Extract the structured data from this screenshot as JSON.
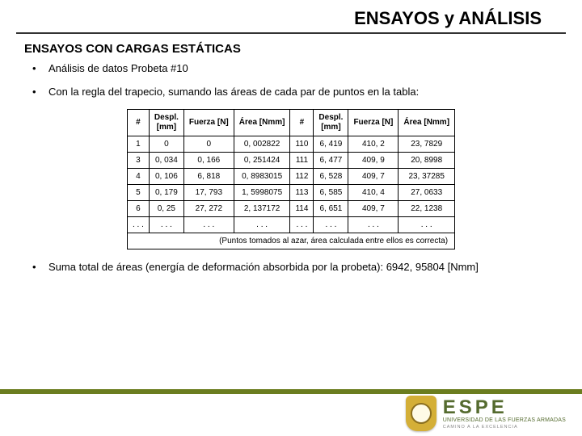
{
  "title": "ENSAYOS y ANÁLISIS",
  "section": "ENSAYOS CON CARGAS ESTÁTICAS",
  "bullets": {
    "b1": "Análisis de datos Probeta #10",
    "b2": "Con la regla del trapecio, sumando las áreas de cada par de puntos en la tabla:",
    "b3": "Suma total de áreas (energía de deformación absorbida por la probeta): 6942, 95804 [Nmm]"
  },
  "table": {
    "headers": {
      "h1": "#",
      "h2": "Despl.\n[mm]",
      "h3": "Fuerza [N]",
      "h4": "Área [Nmm]",
      "h5": "#",
      "h6": "Despl.\n[mm]",
      "h7": "Fuerza [N]",
      "h8": "Área [Nmm]"
    },
    "rows": [
      {
        "c1": "1",
        "c2": "0",
        "c3": "0",
        "c4": "0, 002822",
        "c5": "110",
        "c6": "6, 419",
        "c7": "410, 2",
        "c8": "23, 7829"
      },
      {
        "c1": "3",
        "c2": "0, 034",
        "c3": "0, 166",
        "c4": "0, 251424",
        "c5": "111",
        "c6": "6, 477",
        "c7": "409, 9",
        "c8": "20, 8998"
      },
      {
        "c1": "4",
        "c2": "0, 106",
        "c3": "6, 818",
        "c4": "0, 8983015",
        "c5": "112",
        "c6": "6, 528",
        "c7": "409, 7",
        "c8": "23, 37285"
      },
      {
        "c1": "5",
        "c2": "0, 179",
        "c3": "17, 793",
        "c4": "1, 5998075",
        "c5": "113",
        "c6": "6, 585",
        "c7": "410, 4",
        "c8": "27, 0633"
      },
      {
        "c1": "6",
        "c2": "0, 25",
        "c3": "27, 272",
        "c4": "2, 137172",
        "c5": "114",
        "c6": "6, 651",
        "c7": "409, 7",
        "c8": "22, 1238"
      }
    ],
    "ellipsis": ". . .",
    "dots": ". . .",
    "note": "(Puntos tomados al azar, área calculada entre ellos es correcta)"
  },
  "logo": {
    "espe": "ESPE",
    "sub": "UNIVERSIDAD DE LAS FUERZAS ARMADAS",
    "tag": "CAMINO A LA EXCELENCIA"
  }
}
